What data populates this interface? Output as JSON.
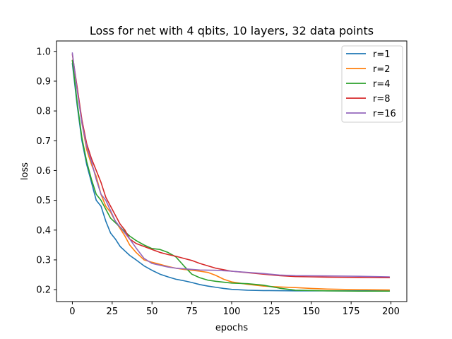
{
  "chart_data": {
    "type": "line",
    "title": "Loss for net with 4 qbits, 10 layers, 32 data points",
    "xlabel": "epochs",
    "ylabel": "loss",
    "xlim": [
      -9.95,
      209.95
    ],
    "ylim": [
      0.16,
      1.035
    ],
    "xticks": [
      0,
      25,
      50,
      75,
      100,
      125,
      150,
      175,
      200
    ],
    "yticks": [
      0.2,
      0.3,
      0.4,
      0.5,
      0.6,
      0.7,
      0.8,
      0.9,
      1.0
    ],
    "ytick_labels": [
      "0.2",
      "0.3",
      "0.4",
      "0.5",
      "0.6",
      "0.7",
      "0.8",
      "0.9",
      "1.0"
    ],
    "grid": false,
    "legend_position": "top-right",
    "series": [
      {
        "name": "r=1",
        "color": "#1f77b4",
        "points": [
          [
            0,
            0.96
          ],
          [
            3,
            0.82
          ],
          [
            6,
            0.7
          ],
          [
            9,
            0.62
          ],
          [
            12,
            0.56
          ],
          [
            15,
            0.5
          ],
          [
            18,
            0.48
          ],
          [
            21,
            0.43
          ],
          [
            24,
            0.39
          ],
          [
            27,
            0.37
          ],
          [
            30,
            0.345
          ],
          [
            33,
            0.33
          ],
          [
            36,
            0.315
          ],
          [
            40,
            0.3
          ],
          [
            45,
            0.28
          ],
          [
            50,
            0.265
          ],
          [
            55,
            0.252
          ],
          [
            60,
            0.243
          ],
          [
            65,
            0.235
          ],
          [
            70,
            0.23
          ],
          [
            75,
            0.224
          ],
          [
            80,
            0.217
          ],
          [
            85,
            0.212
          ],
          [
            90,
            0.208
          ],
          [
            95,
            0.204
          ],
          [
            100,
            0.201
          ],
          [
            110,
            0.198
          ],
          [
            120,
            0.197
          ],
          [
            140,
            0.196
          ],
          [
            160,
            0.196
          ],
          [
            180,
            0.196
          ],
          [
            199,
            0.196
          ]
        ]
      },
      {
        "name": "r=2",
        "color": "#ff7f0e",
        "points": [
          [
            0,
            0.97
          ],
          [
            3,
            0.88
          ],
          [
            6,
            0.76
          ],
          [
            9,
            0.67
          ],
          [
            12,
            0.62
          ],
          [
            15,
            0.58
          ],
          [
            18,
            0.52
          ],
          [
            21,
            0.48
          ],
          [
            24,
            0.46
          ],
          [
            27,
            0.43
          ],
          [
            30,
            0.405
          ],
          [
            33,
            0.38
          ],
          [
            36,
            0.35
          ],
          [
            40,
            0.325
          ],
          [
            45,
            0.3
          ],
          [
            50,
            0.292
          ],
          [
            55,
            0.285
          ],
          [
            60,
            0.278
          ],
          [
            65,
            0.272
          ],
          [
            70,
            0.268
          ],
          [
            75,
            0.265
          ],
          [
            80,
            0.262
          ],
          [
            85,
            0.258
          ],
          [
            90,
            0.248
          ],
          [
            95,
            0.235
          ],
          [
            100,
            0.226
          ],
          [
            110,
            0.218
          ],
          [
            120,
            0.212
          ],
          [
            130,
            0.209
          ],
          [
            140,
            0.207
          ],
          [
            150,
            0.204
          ],
          [
            160,
            0.202
          ],
          [
            180,
            0.2
          ],
          [
            199,
            0.199
          ]
        ]
      },
      {
        "name": "r=4",
        "color": "#2ca02c",
        "points": [
          [
            0,
            0.97
          ],
          [
            3,
            0.83
          ],
          [
            6,
            0.71
          ],
          [
            9,
            0.63
          ],
          [
            12,
            0.57
          ],
          [
            15,
            0.52
          ],
          [
            18,
            0.5
          ],
          [
            21,
            0.47
          ],
          [
            24,
            0.44
          ],
          [
            27,
            0.425
          ],
          [
            30,
            0.41
          ],
          [
            33,
            0.395
          ],
          [
            36,
            0.38
          ],
          [
            40,
            0.365
          ],
          [
            45,
            0.35
          ],
          [
            50,
            0.338
          ],
          [
            55,
            0.335
          ],
          [
            60,
            0.325
          ],
          [
            65,
            0.31
          ],
          [
            70,
            0.28
          ],
          [
            75,
            0.252
          ],
          [
            80,
            0.24
          ],
          [
            85,
            0.232
          ],
          [
            90,
            0.228
          ],
          [
            95,
            0.225
          ],
          [
            100,
            0.222
          ],
          [
            110,
            0.22
          ],
          [
            120,
            0.215
          ],
          [
            130,
            0.205
          ],
          [
            140,
            0.198
          ],
          [
            160,
            0.196
          ],
          [
            180,
            0.195
          ],
          [
            199,
            0.195
          ]
        ]
      },
      {
        "name": "r=8",
        "color": "#d62728",
        "points": [
          [
            0,
            0.99
          ],
          [
            3,
            0.88
          ],
          [
            6,
            0.77
          ],
          [
            9,
            0.69
          ],
          [
            12,
            0.64
          ],
          [
            15,
            0.6
          ],
          [
            18,
            0.56
          ],
          [
            21,
            0.51
          ],
          [
            24,
            0.48
          ],
          [
            27,
            0.45
          ],
          [
            30,
            0.42
          ],
          [
            33,
            0.4
          ],
          [
            36,
            0.37
          ],
          [
            40,
            0.355
          ],
          [
            45,
            0.345
          ],
          [
            50,
            0.335
          ],
          [
            55,
            0.325
          ],
          [
            60,
            0.318
          ],
          [
            65,
            0.312
          ],
          [
            70,
            0.305
          ],
          [
            75,
            0.298
          ],
          [
            80,
            0.288
          ],
          [
            85,
            0.28
          ],
          [
            90,
            0.272
          ],
          [
            95,
            0.267
          ],
          [
            100,
            0.262
          ],
          [
            110,
            0.257
          ],
          [
            120,
            0.252
          ],
          [
            130,
            0.247
          ],
          [
            140,
            0.244
          ],
          [
            150,
            0.243
          ],
          [
            160,
            0.242
          ],
          [
            180,
            0.241
          ],
          [
            199,
            0.24
          ]
        ]
      },
      {
        "name": "r=16",
        "color": "#9467bd",
        "points": [
          [
            0,
            0.995
          ],
          [
            3,
            0.87
          ],
          [
            6,
            0.76
          ],
          [
            9,
            0.68
          ],
          [
            12,
            0.63
          ],
          [
            15,
            0.57
          ],
          [
            18,
            0.52
          ],
          [
            21,
            0.5
          ],
          [
            24,
            0.465
          ],
          [
            27,
            0.43
          ],
          [
            30,
            0.41
          ],
          [
            33,
            0.39
          ],
          [
            36,
            0.37
          ],
          [
            40,
            0.34
          ],
          [
            45,
            0.305
          ],
          [
            50,
            0.288
          ],
          [
            55,
            0.282
          ],
          [
            60,
            0.276
          ],
          [
            65,
            0.272
          ],
          [
            70,
            0.27
          ],
          [
            75,
            0.268
          ],
          [
            80,
            0.266
          ],
          [
            90,
            0.265
          ],
          [
            100,
            0.262
          ],
          [
            110,
            0.258
          ],
          [
            120,
            0.254
          ],
          [
            130,
            0.249
          ],
          [
            140,
            0.247
          ],
          [
            160,
            0.246
          ],
          [
            180,
            0.245
          ],
          [
            199,
            0.243
          ]
        ]
      }
    ]
  }
}
